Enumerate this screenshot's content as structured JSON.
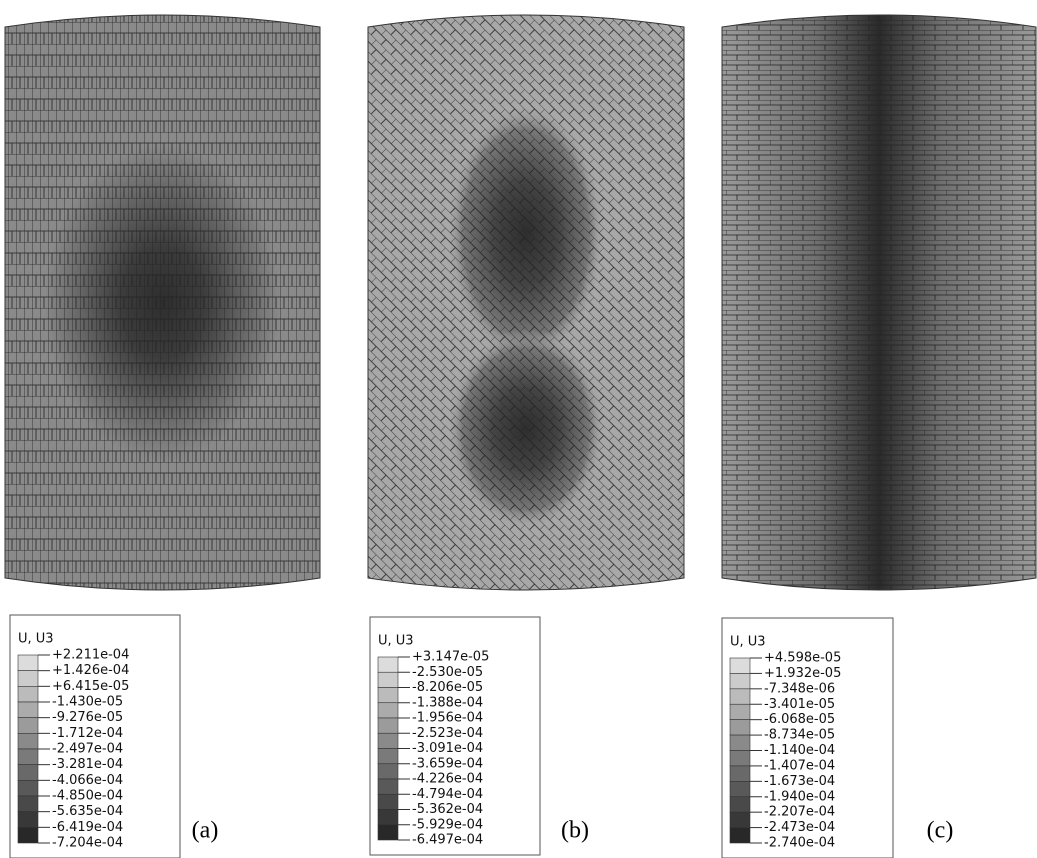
{
  "panels": [
    {
      "legend_title": "U, U3",
      "legend_labels": [
        "+2.211e-04",
        "+1.426e-04",
        "+6.415e-05",
        "-1.430e-05",
        "-9.276e-05",
        "-1.712e-04",
        "-2.497e-04",
        "-3.281e-04",
        "-4.066e-04",
        "-4.850e-04",
        "-5.635e-04",
        "-6.419e-04",
        "-7.204e-04"
      ],
      "caption": "(a)"
    },
    {
      "legend_title": "U, U3",
      "legend_labels": [
        "+3.147e-05",
        "-2.530e-05",
        "-8.206e-05",
        "-1.388e-04",
        "-1.956e-04",
        "-2.523e-04",
        "-3.091e-04",
        "-3.659e-04",
        "-4.226e-04",
        "-4.794e-04",
        "-5.362e-04",
        "-5.929e-04",
        "-6.497e-04"
      ],
      "caption": "(b)"
    },
    {
      "legend_title": "U, U3",
      "legend_labels": [
        "+4.598e-05",
        "+1.932e-05",
        "-7.348e-06",
        "-3.401e-05",
        "-6.068e-05",
        "-8.734e-05",
        "-1.140e-04",
        "-1.407e-04",
        "-1.673e-04",
        "-1.940e-04",
        "-2.207e-04",
        "-2.473e-04",
        "-2.740e-04"
      ],
      "caption": "(c)"
    }
  ]
}
